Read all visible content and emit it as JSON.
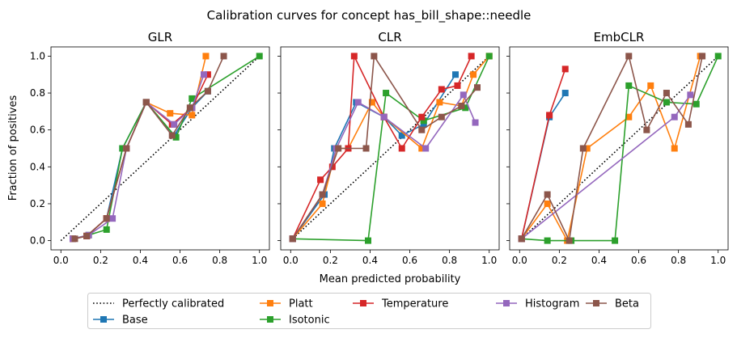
{
  "figure": {
    "suptitle": "Calibration curves for concept has_bill_shape::needle",
    "xlabel": "Mean predicted probability",
    "ylabel": "Fraction of positives"
  },
  "colors": {
    "perfect": "#000000",
    "Base": "#1f77b4",
    "Platt": "#ff7f0e",
    "Isotonic": "#2ca02c",
    "Temperature": "#d62728",
    "Histogram": "#9467bd",
    "Beta": "#8c564b"
  },
  "legend": {
    "placement": "bottom-center",
    "entries": [
      "Perfectly calibrated",
      "Base",
      "Platt",
      "Isotonic",
      "Temperature",
      "Histogram",
      "Beta"
    ]
  },
  "chart_data": [
    {
      "type": "line",
      "title": "GLR",
      "xlim": [
        -0.05,
        1.05
      ],
      "ylim": [
        -0.05,
        1.05
      ],
      "xticks": [
        "0.0",
        "0.2",
        "0.4",
        "0.6",
        "0.8",
        "1.0"
      ],
      "yticks": [
        "0.0",
        "0.2",
        "0.4",
        "0.6",
        "0.8",
        "1.0"
      ],
      "series": [
        {
          "name": "Base",
          "x": [
            0.06,
            0.13,
            0.23,
            0.31,
            0.43,
            0.57,
            0.66,
            0.74
          ],
          "y": [
            0.01,
            0.025,
            0.12,
            0.5,
            0.75,
            0.57,
            0.72,
            0.81
          ]
        },
        {
          "name": "Platt",
          "x": [
            0.06,
            0.13,
            0.23,
            0.33,
            0.43,
            0.55,
            0.66,
            0.73
          ],
          "y": [
            0.01,
            0.025,
            0.12,
            0.5,
            0.75,
            0.69,
            0.68,
            1.0
          ]
        },
        {
          "name": "Isotonic",
          "x": [
            0.06,
            0.14,
            0.23,
            0.31,
            0.43,
            0.58,
            0.66,
            1.0
          ],
          "y": [
            0.01,
            0.03,
            0.06,
            0.5,
            0.75,
            0.56,
            0.77,
            1.0
          ]
        },
        {
          "name": "Temperature",
          "x": [
            0.06,
            0.13,
            0.23,
            0.33,
            0.43,
            0.56,
            0.66,
            0.74
          ],
          "y": [
            0.01,
            0.025,
            0.12,
            0.5,
            0.75,
            0.63,
            0.72,
            0.9
          ]
        },
        {
          "name": "Histogram",
          "x": [
            0.06,
            0.14,
            0.26,
            0.33,
            0.43,
            0.57,
            0.66,
            0.72
          ],
          "y": [
            0.01,
            0.03,
            0.12,
            0.5,
            0.75,
            0.63,
            0.72,
            0.9
          ]
        },
        {
          "name": "Beta",
          "x": [
            0.07,
            0.13,
            0.23,
            0.33,
            0.43,
            0.56,
            0.65,
            0.74,
            0.82
          ],
          "y": [
            0.01,
            0.025,
            0.12,
            0.5,
            0.75,
            0.57,
            0.72,
            0.81,
            1.0
          ]
        }
      ]
    },
    {
      "type": "line",
      "title": "CLR",
      "xlim": [
        -0.05,
        1.05
      ],
      "ylim": [
        -0.05,
        1.05
      ],
      "xticks": [
        "0.0",
        "0.2",
        "0.4",
        "0.6",
        "0.8",
        "1.0"
      ],
      "yticks": [
        "0.0",
        "0.2",
        "0.4",
        "0.6",
        "0.8",
        "1.0"
      ],
      "series": [
        {
          "name": "Base",
          "x": [
            0.01,
            0.17,
            0.22,
            0.33,
            0.47,
            0.56,
            0.67,
            0.83
          ],
          "y": [
            0.01,
            0.25,
            0.5,
            0.75,
            0.67,
            0.57,
            0.63,
            0.9
          ]
        },
        {
          "name": "Platt",
          "x": [
            0.01,
            0.16,
            0.23,
            0.29,
            0.41,
            0.47,
            0.66,
            0.75,
            0.86,
            0.92,
            1.0
          ],
          "y": [
            0.01,
            0.2,
            0.5,
            0.5,
            0.75,
            0.67,
            0.5,
            0.75,
            0.73,
            0.9,
            1.0
          ]
        },
        {
          "name": "Isotonic",
          "x": [
            0.01,
            0.39,
            0.48,
            0.67,
            0.88,
            1.0
          ],
          "y": [
            0.01,
            0.0,
            0.8,
            0.65,
            0.72,
            1.0
          ]
        },
        {
          "name": "Temperature",
          "x": [
            0.01,
            0.15,
            0.21,
            0.29,
            0.32,
            0.47,
            0.56,
            0.66,
            0.76,
            0.84,
            0.91
          ],
          "y": [
            0.01,
            0.33,
            0.4,
            0.5,
            1.0,
            0.67,
            0.5,
            0.67,
            0.82,
            0.84,
            1.0
          ]
        },
        {
          "name": "Histogram",
          "x": [
            0.01,
            0.16,
            0.23,
            0.34,
            0.47,
            0.68,
            0.87,
            0.93
          ],
          "y": [
            0.01,
            0.25,
            0.5,
            0.75,
            0.67,
            0.5,
            0.79,
            0.64
          ]
        },
        {
          "name": "Beta",
          "x": [
            0.01,
            0.16,
            0.24,
            0.38,
            0.42,
            0.66,
            0.76,
            0.86,
            0.94
          ],
          "y": [
            0.01,
            0.25,
            0.5,
            0.5,
            1.0,
            0.6,
            0.67,
            0.73,
            0.83
          ]
        }
      ]
    },
    {
      "type": "line",
      "title": "EmbCLR",
      "xlim": [
        -0.05,
        1.05
      ],
      "ylim": [
        -0.05,
        1.05
      ],
      "xticks": [
        "0.0",
        "0.2",
        "0.4",
        "0.6",
        "0.8",
        "1.0"
      ],
      "yticks": [
        "0.0",
        "0.2",
        "0.4",
        "0.6",
        "0.8",
        "1.0"
      ],
      "series": [
        {
          "name": "Base",
          "x": [
            0.01,
            0.15,
            0.23
          ],
          "y": [
            0.01,
            0.67,
            0.8
          ]
        },
        {
          "name": "Platt",
          "x": [
            0.01,
            0.14,
            0.24,
            0.34,
            0.55,
            0.66,
            0.78,
            0.91
          ],
          "y": [
            0.01,
            0.2,
            0.0,
            0.5,
            0.67,
            0.84,
            0.5,
            1.0
          ]
        },
        {
          "name": "Isotonic",
          "x": [
            0.01,
            0.14,
            0.26,
            0.48,
            0.55,
            0.74,
            0.89,
            1.0
          ],
          "y": [
            0.01,
            0.0,
            0.0,
            0.0,
            0.84,
            0.75,
            0.74,
            1.0
          ]
        },
        {
          "name": "Temperature",
          "x": [
            0.01,
            0.15,
            0.23
          ],
          "y": [
            0.01,
            0.68,
            0.93
          ]
        },
        {
          "name": "Histogram",
          "x": [
            0.01,
            0.78,
            0.86
          ],
          "y": [
            0.01,
            0.67,
            0.79
          ]
        },
        {
          "name": "Beta",
          "x": [
            0.01,
            0.14,
            0.25,
            0.32,
            0.55,
            0.64,
            0.74,
            0.85,
            0.92
          ],
          "y": [
            0.01,
            0.25,
            0.0,
            0.5,
            1.0,
            0.6,
            0.8,
            0.63,
            1.0
          ]
        }
      ]
    }
  ]
}
